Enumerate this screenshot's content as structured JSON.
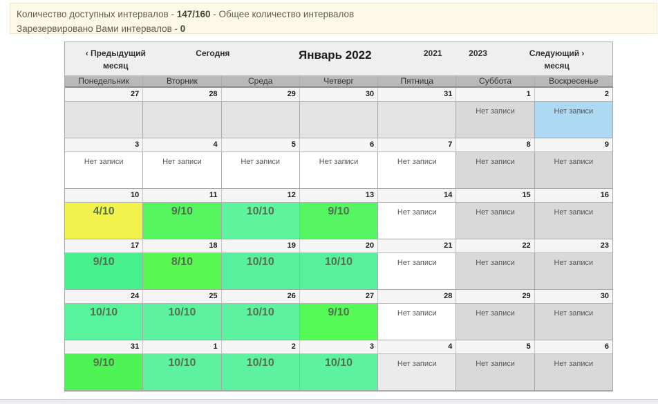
{
  "banner": {
    "line1_prefix": "Количество доступных интервалов - ",
    "line1_bold": "147/160",
    "line1_suffix": " - Общее количество интервалов",
    "line2_prefix": "Зарезервировано Вами интервалов - ",
    "line2_bold": "0"
  },
  "calendar": {
    "nav": {
      "prev_line1": "‹ Предыдущий",
      "prev_line2": "месяц",
      "today_label": "Сегодня",
      "title": "Январь 2022",
      "prev_year": "2021",
      "next_year": "2023",
      "next_line1": "Следующий ›",
      "next_line2": "месяц"
    },
    "day_headers": [
      "Понедельник",
      "Вторник",
      "Среда",
      "Четверг",
      "Пятница",
      "Суббота",
      "Воскресенье"
    ],
    "no_records_label": "Нет записи",
    "weeks": [
      {
        "days": [
          {
            "date": "27",
            "label": "",
            "bg": "#e3e3e3",
            "kind": "empty"
          },
          {
            "date": "28",
            "label": "",
            "bg": "#e3e3e3",
            "kind": "empty"
          },
          {
            "date": "29",
            "label": "",
            "bg": "#e3e3e3",
            "kind": "empty"
          },
          {
            "date": "30",
            "label": "",
            "bg": "#e3e3e3",
            "kind": "empty"
          },
          {
            "date": "31",
            "label": "",
            "bg": "#e3e3e3",
            "kind": "empty"
          },
          {
            "date": "1",
            "label": "Нет записи",
            "bg": "#d9d9d9",
            "kind": "none"
          },
          {
            "date": "2",
            "label": "Нет записи",
            "bg": "#aed9f2",
            "kind": "none"
          }
        ]
      },
      {
        "days": [
          {
            "date": "3",
            "label": "Нет записи",
            "bg": "#ffffff",
            "kind": "none"
          },
          {
            "date": "4",
            "label": "Нет записи",
            "bg": "#ffffff",
            "kind": "none"
          },
          {
            "date": "5",
            "label": "Нет записи",
            "bg": "#ffffff",
            "kind": "none"
          },
          {
            "date": "6",
            "label": "Нет записи",
            "bg": "#ffffff",
            "kind": "none"
          },
          {
            "date": "7",
            "label": "Нет записи",
            "bg": "#ffffff",
            "kind": "none"
          },
          {
            "date": "8",
            "label": "Нет записи",
            "bg": "#d9d9d9",
            "kind": "none"
          },
          {
            "date": "9",
            "label": "Нет записи",
            "bg": "#d9d9d9",
            "kind": "none"
          }
        ]
      },
      {
        "days": [
          {
            "date": "10",
            "label": "4/10",
            "bg": "#f2f24d",
            "kind": "slots"
          },
          {
            "date": "11",
            "label": "9/10",
            "bg": "#55f55f",
            "kind": "slots"
          },
          {
            "date": "12",
            "label": "10/10",
            "bg": "#5ff59e",
            "kind": "slots"
          },
          {
            "date": "13",
            "label": "9/10",
            "bg": "#55f564",
            "kind": "slots"
          },
          {
            "date": "14",
            "label": "Нет записи",
            "bg": "#ffffff",
            "kind": "none"
          },
          {
            "date": "15",
            "label": "Нет записи",
            "bg": "#d9d9d9",
            "kind": "none"
          },
          {
            "date": "16",
            "label": "Нет записи",
            "bg": "#d9d9d9",
            "kind": "none"
          }
        ]
      },
      {
        "days": [
          {
            "date": "17",
            "label": "9/10",
            "bg": "#46f08c",
            "kind": "slots"
          },
          {
            "date": "18",
            "label": "8/10",
            "bg": "#59f751",
            "kind": "slots"
          },
          {
            "date": "19",
            "label": "10/10",
            "bg": "#57f19d",
            "kind": "slots"
          },
          {
            "date": "20",
            "label": "10/10",
            "bg": "#57f19d",
            "kind": "slots"
          },
          {
            "date": "21",
            "label": "Нет записи",
            "bg": "#ffffff",
            "kind": "none"
          },
          {
            "date": "22",
            "label": "Нет записи",
            "bg": "#d9d9d9",
            "kind": "none"
          },
          {
            "date": "23",
            "label": "Нет записи",
            "bg": "#d9d9d9",
            "kind": "none"
          }
        ]
      },
      {
        "days": [
          {
            "date": "24",
            "label": "10/10",
            "bg": "#58f49d",
            "kind": "slots"
          },
          {
            "date": "25",
            "label": "10/10",
            "bg": "#5df2a0",
            "kind": "slots"
          },
          {
            "date": "26",
            "label": "10/10",
            "bg": "#5df2a0",
            "kind": "slots"
          },
          {
            "date": "27",
            "label": "9/10",
            "bg": "#55fa57",
            "kind": "slots"
          },
          {
            "date": "28",
            "label": "Нет записи",
            "bg": "#ffffff",
            "kind": "none"
          },
          {
            "date": "29",
            "label": "Нет записи",
            "bg": "#d9d9d9",
            "kind": "none"
          },
          {
            "date": "30",
            "label": "Нет записи",
            "bg": "#d9d9d9",
            "kind": "none"
          }
        ]
      },
      {
        "days": [
          {
            "date": "31",
            "label": "9/10",
            "bg": "#4ef455",
            "kind": "slots"
          },
          {
            "date": "1",
            "label": "10/10",
            "bg": "#5df2a0",
            "kind": "slots"
          },
          {
            "date": "2",
            "label": "10/10",
            "bg": "#5df2a0",
            "kind": "slots"
          },
          {
            "date": "3",
            "label": "10/10",
            "bg": "#5df2a0",
            "kind": "slots"
          },
          {
            "date": "4",
            "label": "Нет записи",
            "bg": "#ebebeb",
            "kind": "none"
          },
          {
            "date": "5",
            "label": "Нет записи",
            "bg": "#d9d9d9",
            "kind": "none"
          },
          {
            "date": "6",
            "label": "Нет записи",
            "bg": "#d9d9d9",
            "kind": "none"
          }
        ]
      }
    ]
  },
  "colors": {
    "banner_bg": "#fdf9e7",
    "available_green": "#55f55f",
    "available_mint": "#5df2a0",
    "partial_yellow": "#f2f24d",
    "selected_blue": "#aed9f2",
    "weekend_gray": "#d9d9d9"
  }
}
